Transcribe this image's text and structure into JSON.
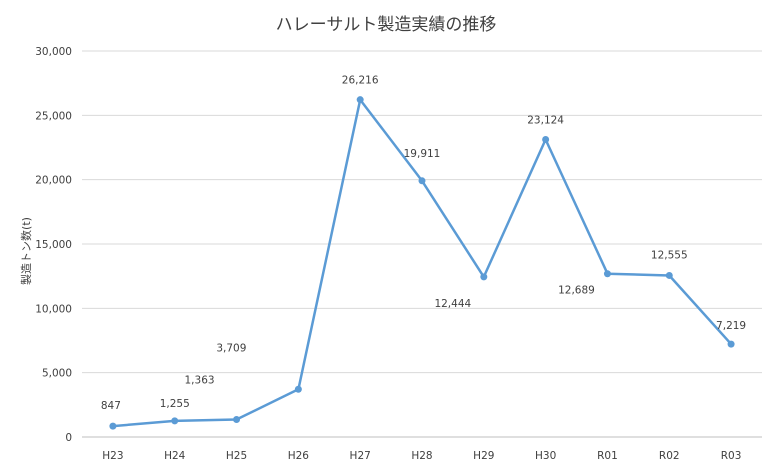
{
  "chart_data": {
    "type": "line",
    "title": "ハレーサルト製造実績の推移",
    "ylabel": "製造トン数(t)",
    "xlabel": "",
    "categories": [
      "H23",
      "H24",
      "H25",
      "H26",
      "H27",
      "H28",
      "H29",
      "H30",
      "R01",
      "R02",
      "R03"
    ],
    "series": [
      {
        "values": [
          847,
          1255,
          1363,
          3709,
          26216,
          19911,
          12444,
          23124,
          12689,
          12555,
          7219
        ],
        "labels": [
          "847",
          "1,255",
          "1,363",
          "3,709",
          "26,216",
          "19,911",
          "12,444",
          "23,124",
          "12,689",
          "12,555",
          "7,219"
        ]
      }
    ],
    "ylim": [
      0,
      30000
    ],
    "yticks": [
      0,
      5000,
      10000,
      15000,
      20000,
      25000,
      30000
    ],
    "ytick_labels": [
      "0",
      "5,000",
      "10,000",
      "15,000",
      "20,000",
      "25,000",
      "30,000"
    ],
    "grid": true,
    "legend": "none",
    "colors": {
      "line": "#5b9bd5",
      "grid": "#d9d9d9",
      "text": "#404040",
      "axis": "#bfbfbf"
    }
  }
}
